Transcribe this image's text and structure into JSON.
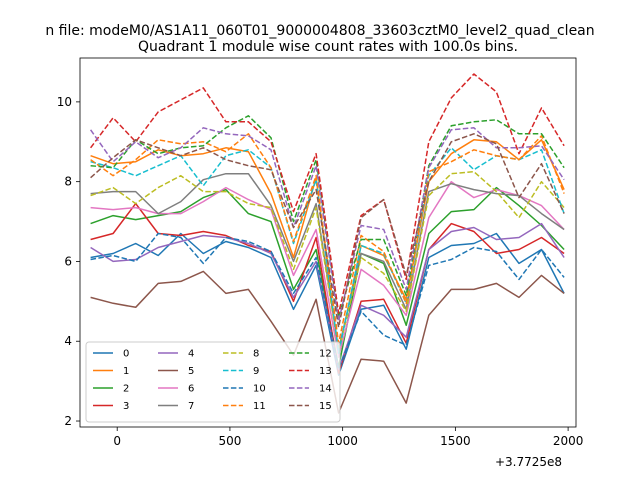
{
  "chart_data": {
    "type": "line",
    "suptitle": "n file: modeM0/AS1A11_060T01_9000004808_33603cztM0_level2_quad_clean",
    "title": "Quadrant 1 module wise count rates with 100.0s bins.",
    "xlabel": "",
    "ylabel": "",
    "x_offset_label": "+3.7725e8",
    "xlim": [
      -165,
      2035
    ],
    "ylim": [
      1.85,
      11.1
    ],
    "xticks": [
      0,
      500,
      1000,
      1500,
      2000
    ],
    "yticks": [
      2,
      4,
      6,
      8,
      10
    ],
    "x": [
      -118,
      -18,
      82,
      182,
      282,
      382,
      482,
      582,
      682,
      782,
      882,
      982,
      1082,
      1182,
      1282,
      1382,
      1482,
      1582,
      1682,
      1782,
      1882,
      1982
    ],
    "legend": {
      "location": "lower-left",
      "columns": 4
    },
    "series": [
      {
        "name": "0",
        "color": "#1f77b4",
        "dash": false,
        "values": [
          6.1,
          6.2,
          6.45,
          6.15,
          6.7,
          6.2,
          6.5,
          6.35,
          6.1,
          4.8,
          5.9,
          3.15,
          4.8,
          4.9,
          3.8,
          6.1,
          6.4,
          6.45,
          6.7,
          5.95,
          6.3,
          5.2
        ]
      },
      {
        "name": "1",
        "color": "#ff7f0e",
        "dash": false,
        "values": [
          8.65,
          8.45,
          8.5,
          8.8,
          8.65,
          8.7,
          8.85,
          8.75,
          7.7,
          6.1,
          8.1,
          3.7,
          6.4,
          6.15,
          5.05,
          8.0,
          8.7,
          9.05,
          9.0,
          8.55,
          9.05,
          7.8
        ]
      },
      {
        "name": "2",
        "color": "#2ca02c",
        "dash": false,
        "values": [
          6.95,
          7.15,
          7.05,
          7.15,
          7.25,
          7.6,
          7.8,
          7.2,
          7.0,
          5.3,
          6.3,
          3.35,
          6.2,
          5.95,
          4.4,
          6.7,
          7.25,
          7.3,
          7.85,
          7.4,
          6.9,
          6.3
        ]
      },
      {
        "name": "3",
        "color": "#d62728",
        "dash": false,
        "values": [
          6.55,
          6.7,
          7.45,
          6.7,
          6.65,
          6.75,
          6.65,
          6.4,
          6.25,
          5.0,
          6.6,
          3.2,
          5.0,
          5.05,
          3.95,
          6.3,
          6.95,
          6.75,
          6.2,
          6.3,
          6.6,
          6.2
        ]
      },
      {
        "name": "4",
        "color": "#9467bd",
        "dash": false,
        "values": [
          6.35,
          6.0,
          6.05,
          6.35,
          6.5,
          6.65,
          6.6,
          6.45,
          6.2,
          5.1,
          6.0,
          3.3,
          4.9,
          4.65,
          4.1,
          6.3,
          6.75,
          6.85,
          6.55,
          6.6,
          6.95,
          6.1
        ]
      },
      {
        "name": "5",
        "color": "#8c564b",
        "dash": false,
        "values": [
          5.1,
          4.95,
          4.85,
          5.45,
          5.5,
          5.75,
          5.2,
          5.3,
          4.5,
          3.65,
          5.05,
          2.2,
          3.55,
          3.5,
          2.45,
          4.65,
          5.3,
          5.3,
          5.45,
          5.1,
          5.65,
          5.2
        ]
      },
      {
        "name": "6",
        "color": "#e377c2",
        "dash": false,
        "values": [
          7.35,
          7.3,
          7.35,
          7.2,
          7.2,
          7.5,
          7.85,
          7.55,
          7.3,
          5.65,
          6.8,
          3.6,
          5.8,
          5.4,
          4.65,
          7.1,
          8.0,
          7.6,
          7.8,
          7.65,
          7.4,
          6.8
        ]
      },
      {
        "name": "7",
        "color": "#7f7f7f",
        "dash": false,
        "values": [
          7.7,
          7.75,
          7.75,
          7.2,
          7.5,
          8.05,
          8.2,
          8.2,
          7.4,
          6.0,
          7.45,
          3.8,
          6.2,
          6.0,
          4.8,
          7.75,
          7.95,
          7.8,
          7.7,
          7.65,
          7.2,
          6.8
        ]
      },
      {
        "name": "8",
        "color": "#bcbd22",
        "dash": true,
        "values": [
          7.65,
          7.85,
          7.45,
          7.85,
          8.15,
          7.75,
          7.75,
          7.45,
          7.35,
          5.8,
          7.35,
          3.75,
          6.1,
          5.7,
          4.75,
          7.65,
          8.2,
          8.25,
          7.75,
          7.1,
          8.0,
          7.35
        ]
      },
      {
        "name": "9",
        "color": "#17becf",
        "dash": true,
        "values": [
          8.5,
          8.35,
          8.15,
          8.4,
          8.65,
          7.9,
          8.65,
          8.8,
          8.35,
          6.45,
          8.05,
          3.7,
          6.4,
          6.2,
          4.95,
          8.15,
          8.85,
          8.3,
          8.65,
          8.55,
          8.8,
          7.2
        ]
      },
      {
        "name": "10",
        "color": "#1f77b4",
        "dash": true,
        "values": [
          6.05,
          6.15,
          6.0,
          6.7,
          6.6,
          5.95,
          6.6,
          6.5,
          6.25,
          5.2,
          6.1,
          3.3,
          4.75,
          4.15,
          3.9,
          5.9,
          6.05,
          6.35,
          6.25,
          5.55,
          6.3,
          5.6
        ]
      },
      {
        "name": "11",
        "color": "#ff7f0e",
        "dash": true,
        "values": [
          8.55,
          8.15,
          8.55,
          9.05,
          8.95,
          9.0,
          8.75,
          9.2,
          8.35,
          6.5,
          8.15,
          3.95,
          6.65,
          6.25,
          4.95,
          8.25,
          8.5,
          8.8,
          8.65,
          8.55,
          9.15,
          7.7
        ]
      },
      {
        "name": "12",
        "color": "#2ca02c",
        "dash": true,
        "values": [
          8.4,
          8.35,
          9.05,
          8.7,
          8.85,
          8.9,
          9.35,
          9.65,
          9.1,
          7.0,
          8.55,
          4.6,
          6.55,
          6.55,
          5.15,
          8.4,
          9.4,
          9.5,
          9.55,
          9.2,
          9.2,
          8.35
        ]
      },
      {
        "name": "13",
        "color": "#d62728",
        "dash": true,
        "values": [
          8.85,
          9.6,
          9.0,
          9.75,
          10.05,
          10.35,
          9.5,
          9.5,
          9.0,
          7.25,
          8.7,
          4.7,
          7.15,
          7.55,
          5.55,
          9.0,
          10.1,
          10.7,
          10.25,
          8.7,
          9.85,
          8.9
        ]
      },
      {
        "name": "14",
        "color": "#9467bd",
        "dash": true,
        "values": [
          9.3,
          8.5,
          9.0,
          8.6,
          8.85,
          9.35,
          9.2,
          9.15,
          8.8,
          6.85,
          8.4,
          4.5,
          6.9,
          6.8,
          5.3,
          8.35,
          9.3,
          9.35,
          8.85,
          8.85,
          8.9,
          8.05
        ]
      },
      {
        "name": "15",
        "color": "#8c564b",
        "dash": true,
        "values": [
          8.1,
          8.6,
          9.05,
          8.85,
          8.65,
          8.85,
          8.55,
          8.4,
          8.3,
          6.85,
          7.8,
          4.35,
          7.1,
          7.55,
          5.65,
          8.0,
          9.0,
          9.2,
          8.95,
          7.6,
          8.45,
          7.2
        ]
      }
    ]
  }
}
